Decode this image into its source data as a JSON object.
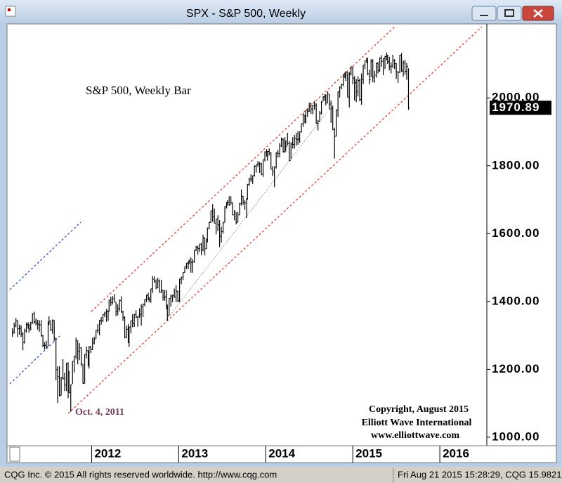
{
  "chart_data": {
    "type": "hlc",
    "title": "SPX - S&P 500, Weekly",
    "subtitle": "S&P 500, Weekly Bar",
    "annotations": [
      "Oct. 4, 2011",
      "Copyright, August 2015",
      "Elliott Wave International",
      "www.elliottwave.com"
    ],
    "color": "#000000",
    "xlim": [
      2011.06,
      2016.54
    ],
    "xticks": [
      2012,
      2013,
      2014,
      2015,
      2016
    ],
    "ylim": [
      979,
      2216
    ],
    "yticks": [
      {
        "value": 1000,
        "label": "1000.00"
      },
      {
        "value": 1200,
        "label": "1200.00"
      },
      {
        "value": 1400,
        "label": "1400.00"
      },
      {
        "value": 1600,
        "label": "1600.00"
      },
      {
        "value": 1800,
        "label": "1800.00"
      },
      {
        "value": 2000,
        "label": "2000.00"
      }
    ],
    "last_price": 1970.89,
    "x": [
      2011.09,
      2011.11,
      2011.13,
      2011.15,
      2011.17,
      2011.19,
      2011.21,
      2011.23,
      2011.25,
      2011.27,
      2011.28,
      2011.3,
      2011.32,
      2011.34,
      2011.36,
      2011.38,
      2011.4,
      2011.42,
      2011.44,
      2011.46,
      2011.48,
      2011.5,
      2011.51,
      2011.53,
      2011.55,
      2011.57,
      2011.59,
      2011.61,
      2011.63,
      2011.65,
      2011.67,
      2011.69,
      2011.71,
      2011.73,
      2011.74,
      2011.76,
      2011.78,
      2011.8,
      2011.82,
      2011.84,
      2011.86,
      2011.88,
      2011.9,
      2011.92,
      2011.94,
      2011.96,
      2011.97,
      2011.99,
      2012.01,
      2012.03,
      2012.05,
      2012.07,
      2012.09,
      2012.11,
      2012.13,
      2012.15,
      2012.17,
      2012.19,
      2012.2,
      2012.22,
      2012.24,
      2012.26,
      2012.28,
      2012.3,
      2012.32,
      2012.34,
      2012.36,
      2012.38,
      2012.4,
      2012.42,
      2012.43,
      2012.45,
      2012.47,
      2012.49,
      2012.51,
      2012.53,
      2012.55,
      2012.57,
      2012.59,
      2012.61,
      2012.63,
      2012.65,
      2012.66,
      2012.68,
      2012.7,
      2012.72,
      2012.74,
      2012.76,
      2012.78,
      2012.8,
      2012.82,
      2012.84,
      2012.86,
      2012.87,
      2012.89,
      2012.91,
      2012.93,
      2012.95,
      2012.97,
      2012.99,
      2013.01,
      2013.03,
      2013.05,
      2013.07,
      2013.09,
      2013.11,
      2013.12,
      2013.14,
      2013.16,
      2013.18,
      2013.2,
      2013.22,
      2013.24,
      2013.26,
      2013.28,
      2013.3,
      2013.32,
      2013.33,
      2013.35,
      2013.37,
      2013.39,
      2013.41,
      2013.43,
      2013.45,
      2013.47,
      2013.49,
      2013.51,
      2013.53,
      2013.55,
      2013.56,
      2013.58,
      2013.6,
      2013.62,
      2013.64,
      2013.66,
      2013.68,
      2013.7,
      2013.72,
      2013.74,
      2013.76,
      2013.78,
      2013.79,
      2013.81,
      2013.83,
      2013.85,
      2013.87,
      2013.89,
      2013.91,
      2013.93,
      2013.95,
      2013.97,
      2013.99,
      2014.01,
      2014.02,
      2014.04,
      2014.06,
      2014.08,
      2014.1,
      2014.12,
      2014.14,
      2014.16,
      2014.18,
      2014.2,
      2014.22,
      2014.23,
      2014.25,
      2014.27,
      2014.29,
      2014.31,
      2014.33,
      2014.35,
      2014.37,
      2014.39,
      2014.41,
      2014.43,
      2014.45,
      2014.46,
      2014.48,
      2014.5,
      2014.52,
      2014.54,
      2014.56,
      2014.58,
      2014.6,
      2014.62,
      2014.64,
      2014.66,
      2014.68,
      2014.69,
      2014.71,
      2014.73,
      2014.75,
      2014.77,
      2014.79,
      2014.81,
      2014.83,
      2014.85,
      2014.87,
      2014.89,
      2014.91,
      2014.92,
      2014.94,
      2014.96,
      2014.98,
      2015,
      2015.02,
      2015.04,
      2015.06,
      2015.08,
      2015.1,
      2015.12,
      2015.14,
      2015.16,
      2015.17,
      2015.19,
      2015.21,
      2015.23,
      2015.25,
      2015.27,
      2015.29,
      2015.31,
      2015.33,
      2015.35,
      2015.37,
      2015.39,
      2015.4,
      2015.42,
      2015.44,
      2015.46,
      2015.48,
      2015.5,
      2015.52,
      2015.54,
      2015.56,
      2015.58,
      2015.6,
      2015.62,
      2015.64
    ],
    "high": [
      1321,
      1338,
      1352,
      1345,
      1332,
      1330,
      1310,
      1320,
      1338,
      1339,
      1334,
      1340,
      1366,
      1370,
      1350,
      1346,
      1345,
      1345,
      1301,
      1280,
      1284,
      1341,
      1356,
      1344,
      1347,
      1345,
      1292,
      1209,
      1209,
      1177,
      1230,
      1190,
      1219,
      1221,
      1195,
      1155,
      1224,
      1240,
      1293,
      1285,
      1277,
      1266,
      1215,
      1244,
      1267,
      1256,
      1269,
      1269,
      1293,
      1296,
      1316,
      1333,
      1345,
      1354,
      1363,
      1370,
      1378,
      1374,
      1405,
      1414,
      1416,
      1422,
      1398,
      1392,
      1406,
      1415,
      1373,
      1356,
      1328,
      1334,
      1326,
      1344,
      1363,
      1363,
      1374,
      1357,
      1380,
      1392,
      1394,
      1407,
      1420,
      1426,
      1413,
      1438,
      1475,
      1474,
      1465,
      1470,
      1465,
      1464,
      1434,
      1434,
      1434,
      1391,
      1409,
      1421,
      1420,
      1438,
      1448,
      1432,
      1467,
      1473,
      1486,
      1503,
      1514,
      1518,
      1524,
      1530,
      1525,
      1552,
      1564,
      1564,
      1570,
      1573,
      1597,
      1589,
      1585,
      1618,
      1635,
      1667,
      1687,
      1674,
      1644,
      1654,
      1640,
      1620,
      1635,
      1680,
      1693,
      1699,
      1709,
      1709,
      1692,
      1669,
      1663,
      1664,
      1691,
      1730,
      1711,
      1699,
      1704,
      1746,
      1765,
      1775,
      1771,
      1802,
      1804,
      1814,
      1811,
      1809,
      1818,
      1842,
      1849,
      1843,
      1851,
      1840,
      1799,
      1798,
      1840,
      1847,
      1867,
      1883,
      1882,
      1884,
      1875,
      1897,
      1873,
      1869,
      1884,
      1891,
      1897,
      1902,
      1901,
      1924,
      1955,
      1950,
      1963,
      1968,
      1985,
      1985,
      1980,
      1991,
      1984,
      1935,
      1961,
      1991,
      2005,
      2011,
      2010,
      2019,
      2011,
      1992,
      1977,
      1912,
      1966,
      2019,
      2034,
      2042,
      2071,
      2075,
      2079,
      2075,
      2077,
      2094,
      2093,
      2064,
      2056,
      2064,
      2057,
      2072,
      2097,
      2110,
      2119,
      2118,
      2083,
      2114,
      2114,
      2080,
      2104,
      2106,
      2120,
      2126,
      2117,
      2124,
      2134,
      2126,
      2121,
      2105,
      2127,
      2114,
      2102,
      2078,
      2127,
      2132,
      2110,
      2112,
      2103,
      2087
    ],
    "low": [
      1296,
      1305,
      1324,
      1295,
      1302,
      1295,
      1256,
      1276,
      1308,
      1320,
      1308,
      1315,
      1334,
      1334,
      1329,
      1317,
      1311,
      1296,
      1265,
      1258,
      1262,
      1268,
      1331,
      1313,
      1305,
      1283,
      1168,
      1101,
      1120,
      1123,
      1170,
      1136,
      1136,
      1115,
      1131,
      1075,
      1157,
      1191,
      1230,
      1215,
      1227,
      1209,
      1158,
      1158,
      1232,
      1209,
      1202,
      1248,
      1257,
      1274,
      1290,
      1306,
      1300,
      1332,
      1340,
      1354,
      1340,
      1343,
      1371,
      1387,
      1391,
      1398,
      1357,
      1359,
      1371,
      1367,
      1343,
      1291,
      1292,
      1278,
      1266,
      1306,
      1324,
      1325,
      1351,
      1326,
      1352,
      1329,
      1354,
      1386,
      1398,
      1404,
      1398,
      1396,
      1425,
      1455,
      1436,
      1439,
      1426,
      1425,
      1403,
      1402,
      1377,
      1343,
      1359,
      1385,
      1398,
      1411,
      1398,
      1398,
      1398,
      1451,
      1463,
      1485,
      1496,
      1495,
      1510,
      1485,
      1485,
      1514,
      1549,
      1538,
      1546,
      1536,
      1548,
      1536,
      1555,
      1574,
      1613,
      1632,
      1635,
      1630,
      1598,
      1608,
      1560,
      1574,
      1600,
      1633,
      1674,
      1682,
      1682,
      1684,
      1654,
      1639,
      1627,
      1633,
      1654,
      1682,
      1685,
      1670,
      1646,
      1700,
      1740,
      1752,
      1746,
      1768,
      1780,
      1796,
      1779,
      1772,
      1767,
      1813,
      1827,
      1815,
      1830,
      1790,
      1770,
      1737,
      1792,
      1824,
      1825,
      1855,
      1839,
      1839,
      1842,
      1860,
      1814,
      1820,
      1851,
      1850,
      1859,
      1862,
      1868,
      1898,
      1915,
      1925,
      1925,
      1944,
      1959,
      1953,
      1952,
      1965,
      1925,
      1904,
      1931,
      1951,
      1990,
      1991,
      1978,
      1984,
      1965,
      1926,
      1905,
      1821,
      1886,
      1944,
      2001,
      2025,
      2034,
      2058,
      2050,
      2002,
      1972,
      2066,
      2040,
      1992,
      1988,
      2004,
      1990,
      1980,
      2041,
      2085,
      2103,
      2067,
      2040,
      2061,
      2046,
      2045,
      2060,
      2072,
      2077,
      2092,
      2067,
      2085,
      2111,
      2100,
      2081,
      2072,
      2088,
      2085,
      2056,
      2044,
      2073,
      2077,
      2063,
      2068,
      2053,
      1965
    ],
    "close": [
      1310,
      1329,
      1343,
      1320,
      1321,
      1304,
      1279,
      1313,
      1332,
      1328,
      1319,
      1337,
      1363,
      1340,
      1337,
      1333,
      1331,
      1300,
      1270,
      1271,
      1268,
      1339,
      1343,
      1316,
      1345,
      1292,
      1199,
      1178,
      1123,
      1176,
      1173,
      1154,
      1216,
      1136,
      1131,
      1155,
      1224,
      1238,
      1285,
      1253,
      1263,
      1216,
      1158,
      1244,
      1255,
      1219,
      1265,
      1258,
      1278,
      1289,
      1315,
      1316,
      1345,
      1343,
      1361,
      1366,
      1370,
      1371,
      1404,
      1397,
      1408,
      1398,
      1370,
      1379,
      1403,
      1369,
      1353,
      1295,
      1318,
      1278,
      1325,
      1343,
      1335,
      1362,
      1354,
      1357,
      1362,
      1386,
      1391,
      1405,
      1418,
      1411,
      1406,
      1437,
      1466,
      1460,
      1440,
      1460,
      1428,
      1433,
      1411,
      1414,
      1380,
      1359,
      1409,
      1416,
      1418,
      1413,
      1430,
      1402,
      1466,
      1472,
      1486,
      1503,
      1513,
      1518,
      1519,
      1515,
      1518,
      1551,
      1560,
      1556,
      1569,
      1553,
      1588,
      1555,
      1582,
      1614,
      1633,
      1667,
      1650,
      1631,
      1643,
      1626,
      1592,
      1606,
      1632,
      1680,
      1692,
      1691,
      1709,
      1691,
      1655,
      1664,
      1633,
      1655,
      1688,
      1710,
      1692,
      1690,
      1703,
      1745,
      1760,
      1762,
      1771,
      1798,
      1804,
      1806,
      1805,
      1775,
      1818,
      1841,
      1831,
      1842,
      1838,
      1790,
      1782,
      1797,
      1838,
      1836,
      1859,
      1878,
      1841,
      1866,
      1857,
      1865,
      1815,
      1864,
      1863,
      1881,
      1878,
      1878,
      1900,
      1924,
      1949,
      1936,
      1963,
      1961,
      1985,
      1967,
      1978,
      1978,
      1925,
      1931,
      1955,
      1988,
      2003,
      2008,
      1985,
      2011,
      1982,
      1968,
      1906,
      1887,
      1964,
      2018,
      2032,
      2039,
      2064,
      2068,
      2075,
      2002,
      2071,
      2089,
      2058,
      2045,
      2019,
      2051,
      1995,
      2055,
      2097,
      2110,
      2104,
      2071,
      2053,
      2108,
      2061,
      2067,
      2102,
      2081,
      2117,
      2108,
      2116,
      2122,
      2126,
      2107,
      2092,
      2094,
      2110,
      2101,
      2077,
      2076,
      2126,
      2079,
      2104,
      2078,
      2092,
      1970.89
    ]
  },
  "status_bar": {
    "left": "CQG Inc. © 2015 All rights reserved worldwide. http://www.cqg.com",
    "right": "Fri Aug 21 2015 15:28:29, CQG 15.9821"
  }
}
